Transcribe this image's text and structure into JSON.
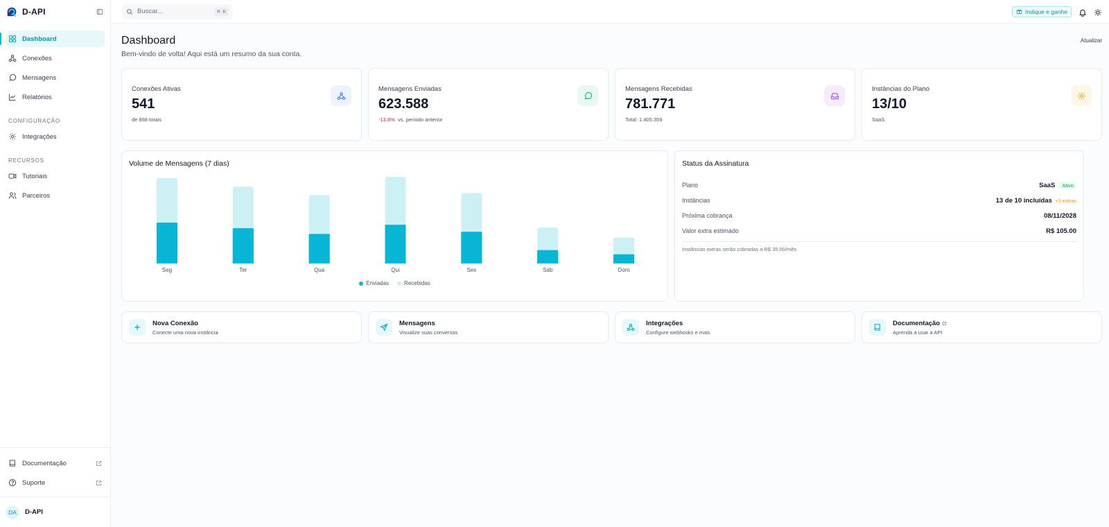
{
  "brand": {
    "name": "D-API"
  },
  "sidebar": {
    "items": [
      {
        "label": "Dashboard",
        "icon": "dashboard-icon",
        "active": true
      },
      {
        "label": "Conexões",
        "icon": "webhook-icon"
      },
      {
        "label": "Mensagens",
        "icon": "message-icon"
      },
      {
        "label": "Relatórios",
        "icon": "chart-line-icon"
      }
    ],
    "section_config": "CONFIGURAÇÃO",
    "config_items": [
      {
        "label": "Integrações",
        "icon": "gear-icon"
      }
    ],
    "section_resources": "RECURSOS",
    "resource_items": [
      {
        "label": "Tutoriais",
        "icon": "video-icon"
      },
      {
        "label": "Parceiros",
        "icon": "users-icon"
      }
    ],
    "bottom_items": [
      {
        "label": "Documentação",
        "icon": "book-icon"
      },
      {
        "label": "Suporte",
        "icon": "help-icon"
      }
    ],
    "user": {
      "initials": "DA",
      "name": "D-API"
    }
  },
  "topbar": {
    "search_placeholder": "Buscar...",
    "shortcut": "⌘ K",
    "referral": "Indique e ganhe"
  },
  "page": {
    "title": "Dashboard",
    "subtitle": "Bem-vindo de volta! Aqui está um resumo da sua conta.",
    "refresh": "Atualizar"
  },
  "stats": [
    {
      "label": "Conexões Ativas",
      "value": "541",
      "sub": "de 868 totais",
      "icon": "webhook-icon",
      "color": "#3b82f6",
      "bg": "#eef4ff"
    },
    {
      "label": "Mensagens Enviadas",
      "value": "623.588",
      "delta": "-13.8%",
      "sub": "vs. período anterior",
      "icon": "message-icon",
      "color": "#10b981",
      "bg": "#e7f9f1"
    },
    {
      "label": "Mensagens Recebidas",
      "value": "781.771",
      "sub": "Total: 1.405.359",
      "icon": "inbox-icon",
      "color": "#a855f7",
      "bg": "#f5ecff"
    },
    {
      "label": "Instâncias do Plano",
      "value": "13/10",
      "sub": "SaaS",
      "icon": "gear-icon",
      "color": "#f59e0b",
      "bg": "#fef6e6"
    }
  ],
  "chart_panel": {
    "title": "Volume de Mensagens (7 dias)"
  },
  "chart_data": {
    "type": "bar",
    "stacked": true,
    "categories": [
      "Seg",
      "Ter",
      "Qua",
      "Qui",
      "Sex",
      "Sáb",
      "Dom"
    ],
    "series": [
      {
        "name": "Enviadas",
        "values": [
          58,
          50,
          42,
          55,
          45,
          19,
          13
        ],
        "color": "#06b6d4"
      },
      {
        "name": "Recebidas",
        "values": [
          63,
          59,
          55,
          68,
          55,
          32,
          24
        ],
        "color": "#cdf0f4"
      }
    ],
    "legend_position": "bottom-center",
    "grid": false
  },
  "subscription": {
    "title": "Status da Assinatura",
    "plan_label": "Plano",
    "plan_value": "SaaS",
    "plan_badge": "Ativo",
    "instances_label": "Instâncias",
    "instances_value": "13 de 10 incluídas",
    "instances_extra": "+3 extras",
    "next_label": "Próxima cobrança",
    "next_value": "08/11/2028",
    "extra_label": "Valor extra estimado",
    "extra_value": "R$ 105.00",
    "note": "Instâncias extras serão cobradas a R$ 35.00/mês"
  },
  "actions": [
    {
      "title": "Nova Conexão",
      "sub": "Conecte uma nova instância",
      "icon": "plus-icon"
    },
    {
      "title": "Mensagens",
      "sub": "Visualize suas conversas",
      "icon": "send-icon"
    },
    {
      "title": "Integrações",
      "sub": "Configure webhooks e mais",
      "icon": "webhook-icon"
    },
    {
      "title": "Documentação",
      "sub": "Aprenda a usar a API",
      "icon": "book-icon",
      "external": true
    }
  ]
}
